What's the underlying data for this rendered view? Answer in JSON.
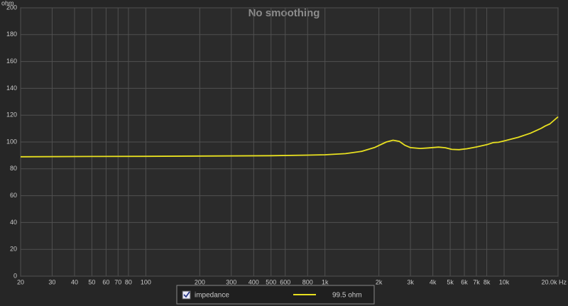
{
  "chart_data": {
    "type": "line",
    "title": "No smoothing",
    "ylabel": "ohm",
    "x": [
      20,
      50,
      100,
      200,
      500,
      800,
      1000,
      1300,
      1600,
      1900,
      2200,
      2400,
      2600,
      2800,
      3000,
      3400,
      3800,
      4300,
      4700,
      5100,
      5600,
      6200,
      7000,
      8000,
      8700,
      9300,
      10000,
      12000,
      14000,
      16000,
      17000,
      18000,
      20000
    ],
    "series": [
      {
        "name": "impedance",
        "color": "#e8e020",
        "legend_readout": "99.5 ohm",
        "values": [
          89,
          89.2,
          89.3,
          89.5,
          89.8,
          90.2,
          90.5,
          91.3,
          93,
          96,
          100,
          101.3,
          100.5,
          97.5,
          95.8,
          95.2,
          95.6,
          96.2,
          95.7,
          94.5,
          94.3,
          95,
          96.3,
          98,
          99.6,
          99.8,
          100.8,
          103.5,
          106.5,
          110,
          112,
          113.5,
          118.8
        ]
      }
    ],
    "xscale": "log",
    "xlim": [
      20,
      20000
    ],
    "ylim": [
      0,
      200
    ],
    "xticks": [
      20,
      30,
      40,
      50,
      60,
      70,
      80,
      100,
      200,
      300,
      400,
      500,
      600,
      800,
      {
        "value": 1000,
        "label": "1k"
      },
      {
        "value": 2000,
        "label": "2k"
      },
      {
        "value": 3000,
        "label": "3k"
      },
      {
        "value": 4000,
        "label": "4k"
      },
      {
        "value": 5000,
        "label": "5k"
      },
      {
        "value": 6000,
        "label": "6k"
      },
      {
        "value": 7000,
        "label": "7k"
      },
      {
        "value": 8000,
        "label": "8k"
      },
      {
        "value": 10000,
        "label": "10k"
      },
      {
        "value": 20000,
        "label": "20.0k Hz"
      }
    ],
    "yticks": [
      0,
      20,
      40,
      60,
      80,
      100,
      120,
      140,
      160,
      180,
      200
    ],
    "grid": true
  }
}
